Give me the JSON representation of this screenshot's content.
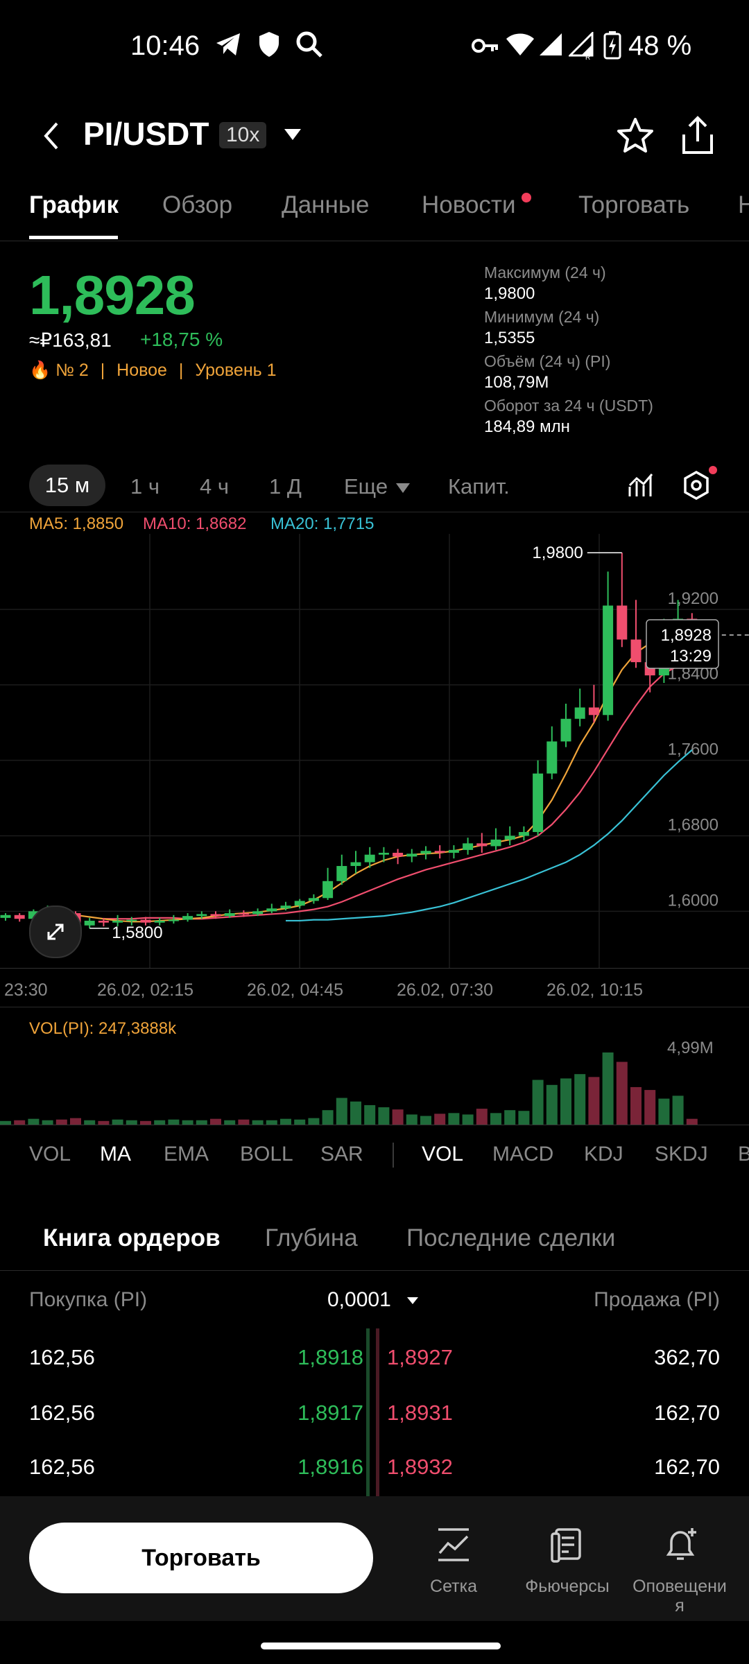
{
  "status_bar": {
    "time": "10:46",
    "battery": "48 %"
  },
  "header": {
    "title": "PI/USDT",
    "leverage": "10x"
  },
  "tabs": [
    "График",
    "Обзор",
    "Данные",
    "Новости",
    "Торговать",
    "Н"
  ],
  "price": {
    "last": "1,8928",
    "rub": "≈₽163,81",
    "change": "+18,75 %",
    "rank": "№ 2",
    "tag_new": "Новое",
    "level": "Уровень 1"
  },
  "stats": [
    {
      "label": "Максимум (24 ч)",
      "value": "1,9800"
    },
    {
      "label": "Минимум (24 ч)",
      "value": "1,5355"
    },
    {
      "label": "Объём (24 ч) (PI)",
      "value": "108,79M"
    },
    {
      "label": "Оборот за 24 ч (USDT)",
      "value": "184,89 млн"
    }
  ],
  "timeframes": [
    "15 м",
    "1 ч",
    "4 ч",
    "1 Д",
    "Еще",
    "Капит."
  ],
  "ma_legend": {
    "ma5": "MA5: 1,8850",
    "ma10": "MA10: 1,8682",
    "ma20": "MA20: 1,7715"
  },
  "chart_data": {
    "type": "candlestick",
    "y_ticks": [
      "1,9200",
      "1,8400",
      "1,7600",
      "1,6800",
      "1,6000"
    ],
    "ylim": [
      1.54,
      2.0
    ],
    "x_ticks": [
      "23:30",
      "26.02, 02:15",
      "26.02, 04:45",
      "26.02, 07:30",
      "26.02, 10:15"
    ],
    "high_marker": "1,9800",
    "low_marker": "1,5800",
    "current_price": "1,8928",
    "countdown": "13:29",
    "candles": [
      [
        1.593,
        1.596,
        1.59,
        1.598
      ],
      [
        1.596,
        1.592,
        1.589,
        1.598
      ],
      [
        1.592,
        1.6,
        1.59,
        1.602
      ],
      [
        1.6,
        1.603,
        1.598,
        1.606
      ],
      [
        1.603,
        1.598,
        1.596,
        1.605
      ],
      [
        1.598,
        1.585,
        1.583,
        1.6
      ],
      [
        1.585,
        1.59,
        1.582,
        1.593
      ],
      [
        1.59,
        1.588,
        1.584,
        1.593
      ],
      [
        1.588,
        1.59,
        1.584,
        1.596
      ],
      [
        1.59,
        1.591,
        1.585,
        1.594
      ],
      [
        1.591,
        1.588,
        1.585,
        1.594
      ],
      [
        1.588,
        1.59,
        1.585,
        1.593
      ],
      [
        1.59,
        1.591,
        1.587,
        1.596
      ],
      [
        1.591,
        1.595,
        1.589,
        1.598
      ],
      [
        1.595,
        1.597,
        1.592,
        1.6
      ],
      [
        1.597,
        1.595,
        1.592,
        1.6
      ],
      [
        1.595,
        1.598,
        1.593,
        1.602
      ],
      [
        1.598,
        1.597,
        1.594,
        1.601
      ],
      [
        1.597,
        1.6,
        1.595,
        1.603
      ],
      [
        1.6,
        1.603,
        1.598,
        1.608
      ],
      [
        1.603,
        1.606,
        1.601,
        1.61
      ],
      [
        1.606,
        1.611,
        1.603,
        1.613
      ],
      [
        1.611,
        1.614,
        1.608,
        1.618
      ],
      [
        1.614,
        1.632,
        1.612,
        1.646
      ],
      [
        1.632,
        1.648,
        1.628,
        1.66
      ],
      [
        1.648,
        1.652,
        1.64,
        1.664
      ],
      [
        1.652,
        1.66,
        1.646,
        1.668
      ],
      [
        1.66,
        1.662,
        1.652,
        1.668
      ],
      [
        1.662,
        1.658,
        1.65,
        1.666
      ],
      [
        1.658,
        1.661,
        1.652,
        1.666
      ],
      [
        1.661,
        1.664,
        1.655,
        1.669
      ],
      [
        1.664,
        1.662,
        1.656,
        1.67
      ],
      [
        1.662,
        1.665,
        1.656,
        1.67
      ],
      [
        1.665,
        1.672,
        1.66,
        1.678
      ],
      [
        1.672,
        1.669,
        1.662,
        1.683
      ],
      [
        1.669,
        1.676,
        1.665,
        1.688
      ],
      [
        1.676,
        1.68,
        1.67,
        1.69
      ],
      [
        1.68,
        1.684,
        1.675,
        1.69
      ],
      [
        1.684,
        1.746,
        1.68,
        1.76
      ],
      [
        1.746,
        1.78,
        1.74,
        1.796
      ],
      [
        1.78,
        1.804,
        1.774,
        1.82
      ],
      [
        1.804,
        1.816,
        1.796,
        1.836
      ],
      [
        1.816,
        1.808,
        1.8,
        1.84
      ],
      [
        1.808,
        1.924,
        1.802,
        1.96
      ],
      [
        1.924,
        1.888,
        1.88,
        1.98
      ],
      [
        1.888,
        1.864,
        1.858,
        1.93
      ],
      [
        1.864,
        1.85,
        1.832,
        1.876
      ],
      [
        1.85,
        1.888,
        1.842,
        1.91
      ],
      [
        1.888,
        1.91,
        1.87,
        1.93
      ],
      [
        1.91,
        1.893,
        1.884,
        1.916
      ]
    ],
    "ma5": [
      1.594,
      1.595,
      1.596,
      1.596,
      1.594,
      1.592,
      1.59,
      1.589,
      1.589,
      1.59,
      1.591,
      1.592,
      1.593,
      1.595,
      1.597,
      1.598,
      1.599,
      1.601,
      1.603,
      1.606,
      1.612,
      1.62,
      1.63,
      1.64,
      1.648,
      1.654,
      1.658,
      1.66,
      1.661,
      1.662,
      1.664,
      1.667,
      1.67,
      1.673,
      1.676,
      1.68,
      1.696,
      1.718,
      1.746,
      1.776,
      1.8,
      1.83,
      1.856,
      1.874,
      1.884,
      1.884,
      1.88,
      1.885
    ],
    "ma10": [
      1.592,
      1.592,
      1.592,
      1.593,
      1.593,
      1.593,
      1.592,
      1.592,
      1.593,
      1.594,
      1.595,
      1.596,
      1.597,
      1.598,
      1.6,
      1.602,
      1.605,
      1.61,
      1.616,
      1.622,
      1.628,
      1.634,
      1.639,
      1.644,
      1.648,
      1.652,
      1.656,
      1.66,
      1.664,
      1.668,
      1.673,
      1.68,
      1.692,
      1.708,
      1.726,
      1.748,
      1.772,
      1.796,
      1.818,
      1.838,
      1.852,
      1.86,
      1.868
    ],
    "ma20": [
      1.59,
      1.59,
      1.591,
      1.591,
      1.592,
      1.593,
      1.594,
      1.595,
      1.597,
      1.599,
      1.602,
      1.605,
      1.609,
      1.614,
      1.619,
      1.624,
      1.629,
      1.634,
      1.64,
      1.646,
      1.652,
      1.66,
      1.67,
      1.682,
      1.696,
      1.712,
      1.728,
      1.744,
      1.758,
      1.771
    ],
    "volume_label": "VOL(PI): 247,3888k",
    "volume_max_label": "4,99M",
    "volumes": [
      0.05,
      0.06,
      0.08,
      0.06,
      0.07,
      0.09,
      0.06,
      0.05,
      0.07,
      0.06,
      0.05,
      0.06,
      0.07,
      0.06,
      0.06,
      0.08,
      0.06,
      0.07,
      0.06,
      0.06,
      0.08,
      0.07,
      0.09,
      0.2,
      0.37,
      0.32,
      0.27,
      0.24,
      0.21,
      0.14,
      0.12,
      0.15,
      0.16,
      0.14,
      0.22,
      0.16,
      0.2,
      0.19,
      0.62,
      0.55,
      0.64,
      0.7,
      0.66,
      1.0,
      0.87,
      0.52,
      0.48,
      0.36,
      0.4,
      0.08
    ]
  },
  "indicators_main": [
    "VOL",
    "MA",
    "EMA",
    "BOLL",
    "SAR"
  ],
  "indicators_sub": [
    "VOL",
    "MACD",
    "KDJ",
    "SKDJ",
    "B"
  ],
  "orderbook_tabs": [
    "Книга ордеров",
    "Глубина",
    "Последние сделки"
  ],
  "orderbook": {
    "buy_header": "Покупка (PI)",
    "precision": "0,0001",
    "sell_header": "Продажа (PI)",
    "rows": [
      {
        "bid_qty": "162,56",
        "bid": "1,8918",
        "ask": "1,8927",
        "ask_qty": "362,70"
      },
      {
        "bid_qty": "162,56",
        "bid": "1,8917",
        "ask": "1,8931",
        "ask_qty": "162,70"
      },
      {
        "bid_qty": "162,56",
        "bid": "1,8916",
        "ask": "1,8932",
        "ask_qty": "162,70"
      }
    ]
  },
  "bottom_nav": {
    "trade_button": "Торговать",
    "items": [
      "Сетка",
      "Фьючерсы",
      "Оповещения"
    ]
  }
}
